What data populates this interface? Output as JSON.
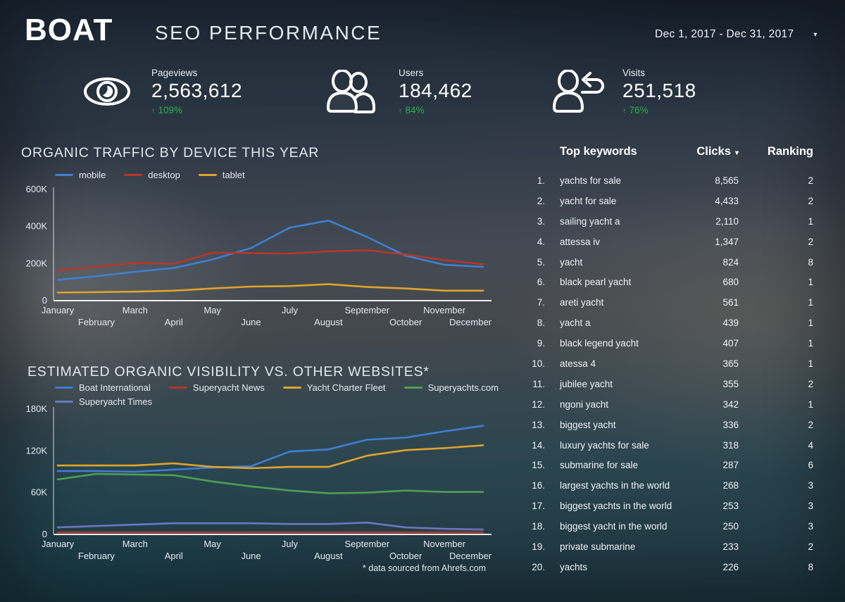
{
  "header": {
    "logo": "BOAT",
    "title": "SEO PERFORMANCE",
    "date_range": "Dec 1, 2017 - Dec 31, 2017",
    "date_caret_icon": "chevron-down-icon"
  },
  "colors": {
    "accent_green": "#2bb24c",
    "text_white": "#ffffff",
    "line_blue": "#3f7fd2",
    "line_red": "#b5372b",
    "line_yellow": "#dfa32c",
    "line_green": "#4f9e54",
    "line_slate": "#6b77c0"
  },
  "kpis": [
    {
      "icon": "eye-icon",
      "label": "Pageviews",
      "value": "2,563,612",
      "delta_arrow": "↑",
      "delta": "109%"
    },
    {
      "icon": "users-icon",
      "label": "Users",
      "value": "184,462",
      "delta_arrow": "↑",
      "delta": "84%"
    },
    {
      "icon": "visit-return-icon",
      "label": "Visits",
      "value": "251,518",
      "delta_arrow": "↑",
      "delta": "76%"
    }
  ],
  "chart_data": [
    {
      "type": "line",
      "title": "ORGANIC TRAFFIC BY DEVICE THIS YEAR",
      "x_categories": [
        "January",
        "February",
        "March",
        "April",
        "May",
        "June",
        "July",
        "August",
        "September",
        "October",
        "November",
        "December"
      ],
      "y_unit": "thousands",
      "ylim_k": [
        0,
        600
      ],
      "y_ticks": [
        {
          "value_k": 0,
          "label": "0"
        },
        {
          "value_k": 200,
          "label": "200K"
        },
        {
          "value_k": 400,
          "label": "400K"
        },
        {
          "value_k": 600,
          "label": "600K"
        }
      ],
      "grid": false,
      "legend_position": "top",
      "series": [
        {
          "name": "mobile",
          "color": "#3f7fd2",
          "values_k": [
            108,
            128,
            152,
            172,
            218,
            280,
            390,
            428,
            340,
            238,
            190,
            178
          ]
        },
        {
          "name": "desktop",
          "color": "#b5372b",
          "values_k": [
            160,
            178,
            200,
            195,
            255,
            253,
            250,
            262,
            268,
            245,
            215,
            192
          ]
        },
        {
          "name": "tablet",
          "color": "#dfa32c",
          "values_k": [
            40,
            42,
            45,
            50,
            62,
            72,
            75,
            85,
            70,
            62,
            50,
            50
          ]
        }
      ]
    },
    {
      "type": "line",
      "title": "ESTIMATED ORGANIC VISIBILITY VS. OTHER WEBSITES*",
      "x_categories": [
        "January",
        "February",
        "March",
        "April",
        "May",
        "June",
        "July",
        "August",
        "September",
        "October",
        "November",
        "December"
      ],
      "y_unit": "thousands",
      "ylim_k": [
        0,
        180
      ],
      "y_ticks": [
        {
          "value_k": 0,
          "label": "0"
        },
        {
          "value_k": 60,
          "label": "60K"
        },
        {
          "value_k": 120,
          "label": "120K"
        },
        {
          "value_k": 180,
          "label": "180K"
        }
      ],
      "grid": false,
      "legend_position": "top",
      "footnote": "* data sourced from Ahrefs.com",
      "series": [
        {
          "name": "Boat International",
          "color": "#3f7fd2",
          "values_k": [
            90,
            90,
            89,
            92,
            95,
            97,
            118,
            121,
            135,
            138,
            147,
            155
          ]
        },
        {
          "name": "Superyacht News",
          "color": "#b5372b",
          "values_k": [
            2,
            2,
            2,
            2,
            2,
            2,
            2,
            2,
            2,
            2,
            2,
            2
          ]
        },
        {
          "name": "Yacht Charter Fleet",
          "color": "#dfa32c",
          "values_k": [
            98,
            98,
            98,
            101,
            96,
            94,
            96,
            96,
            112,
            120,
            123,
            127
          ]
        },
        {
          "name": "Superyachts.com",
          "color": "#4f9e54",
          "values_k": [
            78,
            86,
            85,
            84,
            75,
            68,
            62,
            58,
            59,
            62,
            60,
            60
          ]
        },
        {
          "name": "Superyacht Times",
          "color": "#6b77c0",
          "values_k": [
            9,
            11,
            13,
            15,
            15,
            15,
            14,
            14,
            16,
            9,
            7,
            6
          ]
        }
      ]
    }
  ],
  "keywords": {
    "header": {
      "keyword_label": "Top keywords",
      "clicks_label": "Clicks",
      "sort_caret": "▾",
      "ranking_label": "Ranking"
    },
    "rows": [
      {
        "pos": 1,
        "keyword": "yachts for sale",
        "clicks": "8,565",
        "ranking": "2"
      },
      {
        "pos": 2,
        "keyword": "yacht for sale",
        "clicks": "4,433",
        "ranking": "2"
      },
      {
        "pos": 3,
        "keyword": "sailing yacht a",
        "clicks": "2,110",
        "ranking": "1"
      },
      {
        "pos": 4,
        "keyword": "attessa iv",
        "clicks": "1,347",
        "ranking": "2"
      },
      {
        "pos": 5,
        "keyword": "yacht",
        "clicks": "824",
        "ranking": "8"
      },
      {
        "pos": 6,
        "keyword": "black pearl yacht",
        "clicks": "680",
        "ranking": "1"
      },
      {
        "pos": 7,
        "keyword": "areti yacht",
        "clicks": "561",
        "ranking": "1"
      },
      {
        "pos": 8,
        "keyword": "yacht a",
        "clicks": "439",
        "ranking": "1"
      },
      {
        "pos": 9,
        "keyword": "black legend yacht",
        "clicks": "407",
        "ranking": "1"
      },
      {
        "pos": 10,
        "keyword": "atessa 4",
        "clicks": "365",
        "ranking": "1"
      },
      {
        "pos": 11,
        "keyword": "jubilee yacht",
        "clicks": "355",
        "ranking": "2"
      },
      {
        "pos": 12,
        "keyword": "ngoni yacht",
        "clicks": "342",
        "ranking": "1"
      },
      {
        "pos": 13,
        "keyword": "biggest yacht",
        "clicks": "336",
        "ranking": "2"
      },
      {
        "pos": 14,
        "keyword": "luxury yachts for sale",
        "clicks": "318",
        "ranking": "4"
      },
      {
        "pos": 15,
        "keyword": "submarine for sale",
        "clicks": "287",
        "ranking": "6"
      },
      {
        "pos": 16,
        "keyword": "largest yachts in the world",
        "clicks": "268",
        "ranking": "3"
      },
      {
        "pos": 17,
        "keyword": "biggest yachts in the world",
        "clicks": "253",
        "ranking": "3"
      },
      {
        "pos": 18,
        "keyword": "biggest yacht in the world",
        "clicks": "250",
        "ranking": "3"
      },
      {
        "pos": 19,
        "keyword": "private submarine",
        "clicks": "233",
        "ranking": "2"
      },
      {
        "pos": 20,
        "keyword": "yachts",
        "clicks": "226",
        "ranking": "8"
      }
    ]
  }
}
